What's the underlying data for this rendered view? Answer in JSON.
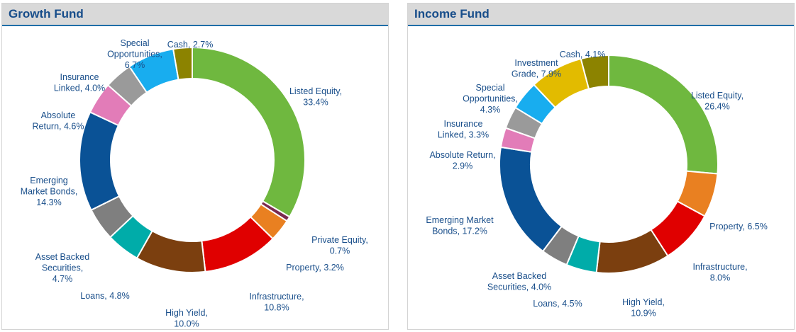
{
  "chart_data": [
    {
      "type": "donut",
      "title": "Growth Fund",
      "slices": [
        {
          "label": "Listed Equity",
          "value": 33.4,
          "color": "#6fb83f",
          "text": [
            "Listed Equity,",
            "33.4%"
          ]
        },
        {
          "label": "Private Equity",
          "value": 0.7,
          "color": "#7a2a4f",
          "text": [
            "Private Equity,",
            "0.7%"
          ]
        },
        {
          "label": "Property",
          "value": 3.2,
          "color": "#e98021",
          "text": [
            "Property, 3.2%"
          ]
        },
        {
          "label": "Infrastructure",
          "value": 10.8,
          "color": "#e00000",
          "text": [
            "Infrastructure,",
            "10.8%"
          ]
        },
        {
          "label": "High Yield",
          "value": 10.0,
          "color": "#7b3f0f",
          "text": [
            "High Yield,",
            "10.0%"
          ]
        },
        {
          "label": "Loans",
          "value": 4.8,
          "color": "#00aca9",
          "text": [
            "Loans, 4.8%"
          ]
        },
        {
          "label": "Asset Backed Securities",
          "value": 4.7,
          "color": "#7f7f7f",
          "text": [
            "Asset Backed",
            "Securities,",
            "4.7%"
          ]
        },
        {
          "label": "Emerging Market Bonds",
          "value": 14.3,
          "color": "#0a5296",
          "text": [
            "Emerging",
            "Market Bonds,",
            "14.3%"
          ]
        },
        {
          "label": "Absolute Return",
          "value": 4.6,
          "color": "#e27cb8",
          "text": [
            "Absolute",
            "Return, 4.6%"
          ]
        },
        {
          "label": "Insurance Linked",
          "value": 4.0,
          "color": "#9a9a9a",
          "text": [
            "Insurance",
            "Linked, 4.0%"
          ]
        },
        {
          "label": "Special Opportunities",
          "value": 6.7,
          "color": "#18adef",
          "text": [
            "Special",
            "Opportunities,",
            "6.7%"
          ]
        },
        {
          "label": "Cash",
          "value": 2.7,
          "color": "#8c8300",
          "text": [
            "Cash, 2.7%"
          ]
        }
      ]
    },
    {
      "type": "donut",
      "title": "Income Fund",
      "slices": [
        {
          "label": "Listed Equity",
          "value": 26.4,
          "color": "#6fb83f",
          "text": [
            "Listed Equity,",
            "26.4%"
          ]
        },
        {
          "label": "Property",
          "value": 6.5,
          "color": "#e98021",
          "text": [
            "Property, 6.5%"
          ]
        },
        {
          "label": "Infrastructure",
          "value": 8.0,
          "color": "#e00000",
          "text": [
            "Infrastructure,",
            "8.0%"
          ]
        },
        {
          "label": "High Yield",
          "value": 10.9,
          "color": "#7b3f0f",
          "text": [
            "High Yield,",
            "10.9%"
          ]
        },
        {
          "label": "Loans",
          "value": 4.5,
          "color": "#00aca9",
          "text": [
            "Loans, 4.5%"
          ]
        },
        {
          "label": "Asset Backed Securities",
          "value": 4.0,
          "color": "#7f7f7f",
          "text": [
            "Asset Backed",
            "Securities, 4.0%"
          ]
        },
        {
          "label": "Emerging Market Bonds",
          "value": 17.2,
          "color": "#0a5296",
          "text": [
            "Emerging Market",
            "Bonds, 17.2%"
          ]
        },
        {
          "label": "Absolute Return",
          "value": 2.9,
          "color": "#e27cb8",
          "text": [
            "Absolute Return,",
            "2.9%"
          ]
        },
        {
          "label": "Insurance Linked",
          "value": 3.3,
          "color": "#9a9a9a",
          "text": [
            "Insurance",
            "Linked, 3.3%"
          ]
        },
        {
          "label": "Special Opportunities",
          "value": 4.3,
          "color": "#18adef",
          "text": [
            "Special",
            "Opportunities,",
            "4.3%"
          ]
        },
        {
          "label": "Investment Grade",
          "value": 7.9,
          "color": "#e2bb00",
          "text": [
            "Investment",
            "Grade, 7.9%"
          ]
        },
        {
          "label": "Cash",
          "value": 4.1,
          "color": "#8c8300",
          "text": [
            "Cash, 4.1%"
          ]
        }
      ]
    }
  ]
}
